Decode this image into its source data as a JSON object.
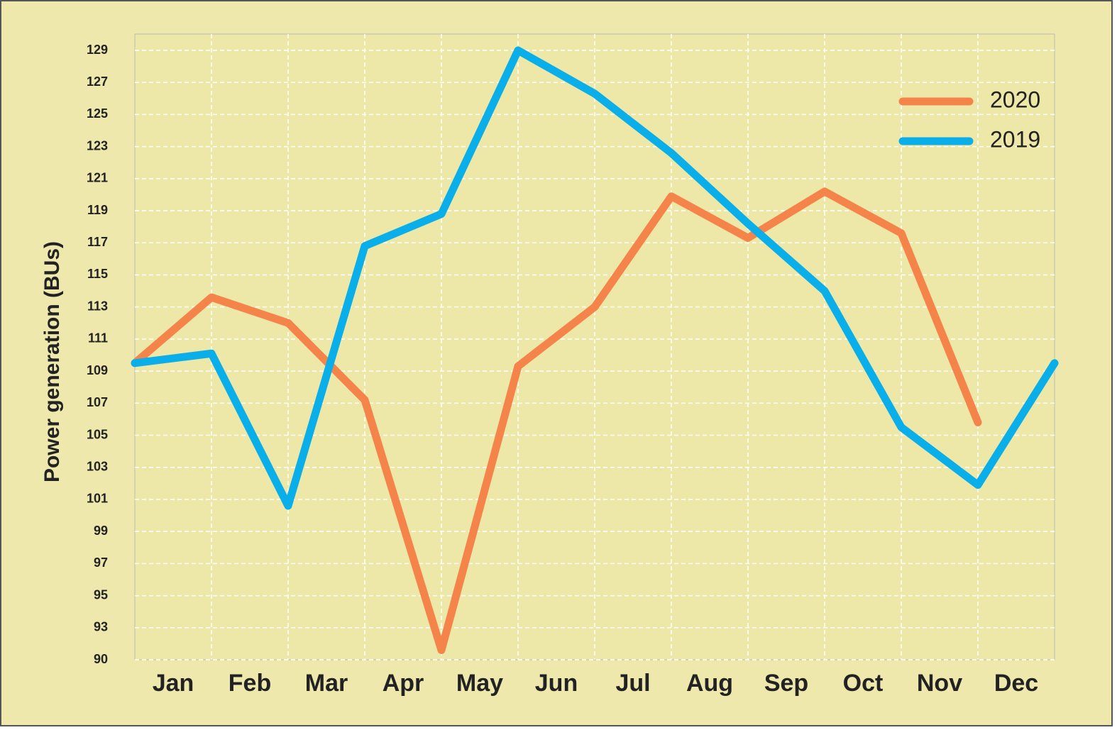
{
  "chart_data": {
    "type": "line",
    "y_label": "Power generation (BUs)",
    "categories": [
      "Jan",
      "Feb",
      "Mar",
      "Apr",
      "May",
      "Jun",
      "Jul",
      "Aug",
      "Sep",
      "Oct",
      "Nov",
      "Dec",
      null
    ],
    "series": [
      {
        "name": "2020",
        "color": "#f5844a",
        "values": [
          109.5,
          113.6,
          112.0,
          107.2,
          90.9,
          109.3,
          113.0,
          119.9,
          117.3,
          120.2,
          117.6,
          105.8,
          null
        ]
      },
      {
        "name": "2019",
        "color": "#0aaee8",
        "values": [
          109.5,
          110.1,
          100.6,
          116.8,
          118.8,
          129.0,
          126.3,
          122.6,
          118.2,
          114.0,
          105.5,
          101.9,
          109.5
        ]
      }
    ],
    "ylim": [
      90,
      129
    ],
    "yticks": [
      90,
      93,
      95,
      97,
      99,
      101,
      103,
      105,
      107,
      109,
      111,
      113,
      115,
      117,
      119,
      121,
      123,
      125,
      127,
      129
    ],
    "grid": true,
    "legend": "top-right"
  }
}
